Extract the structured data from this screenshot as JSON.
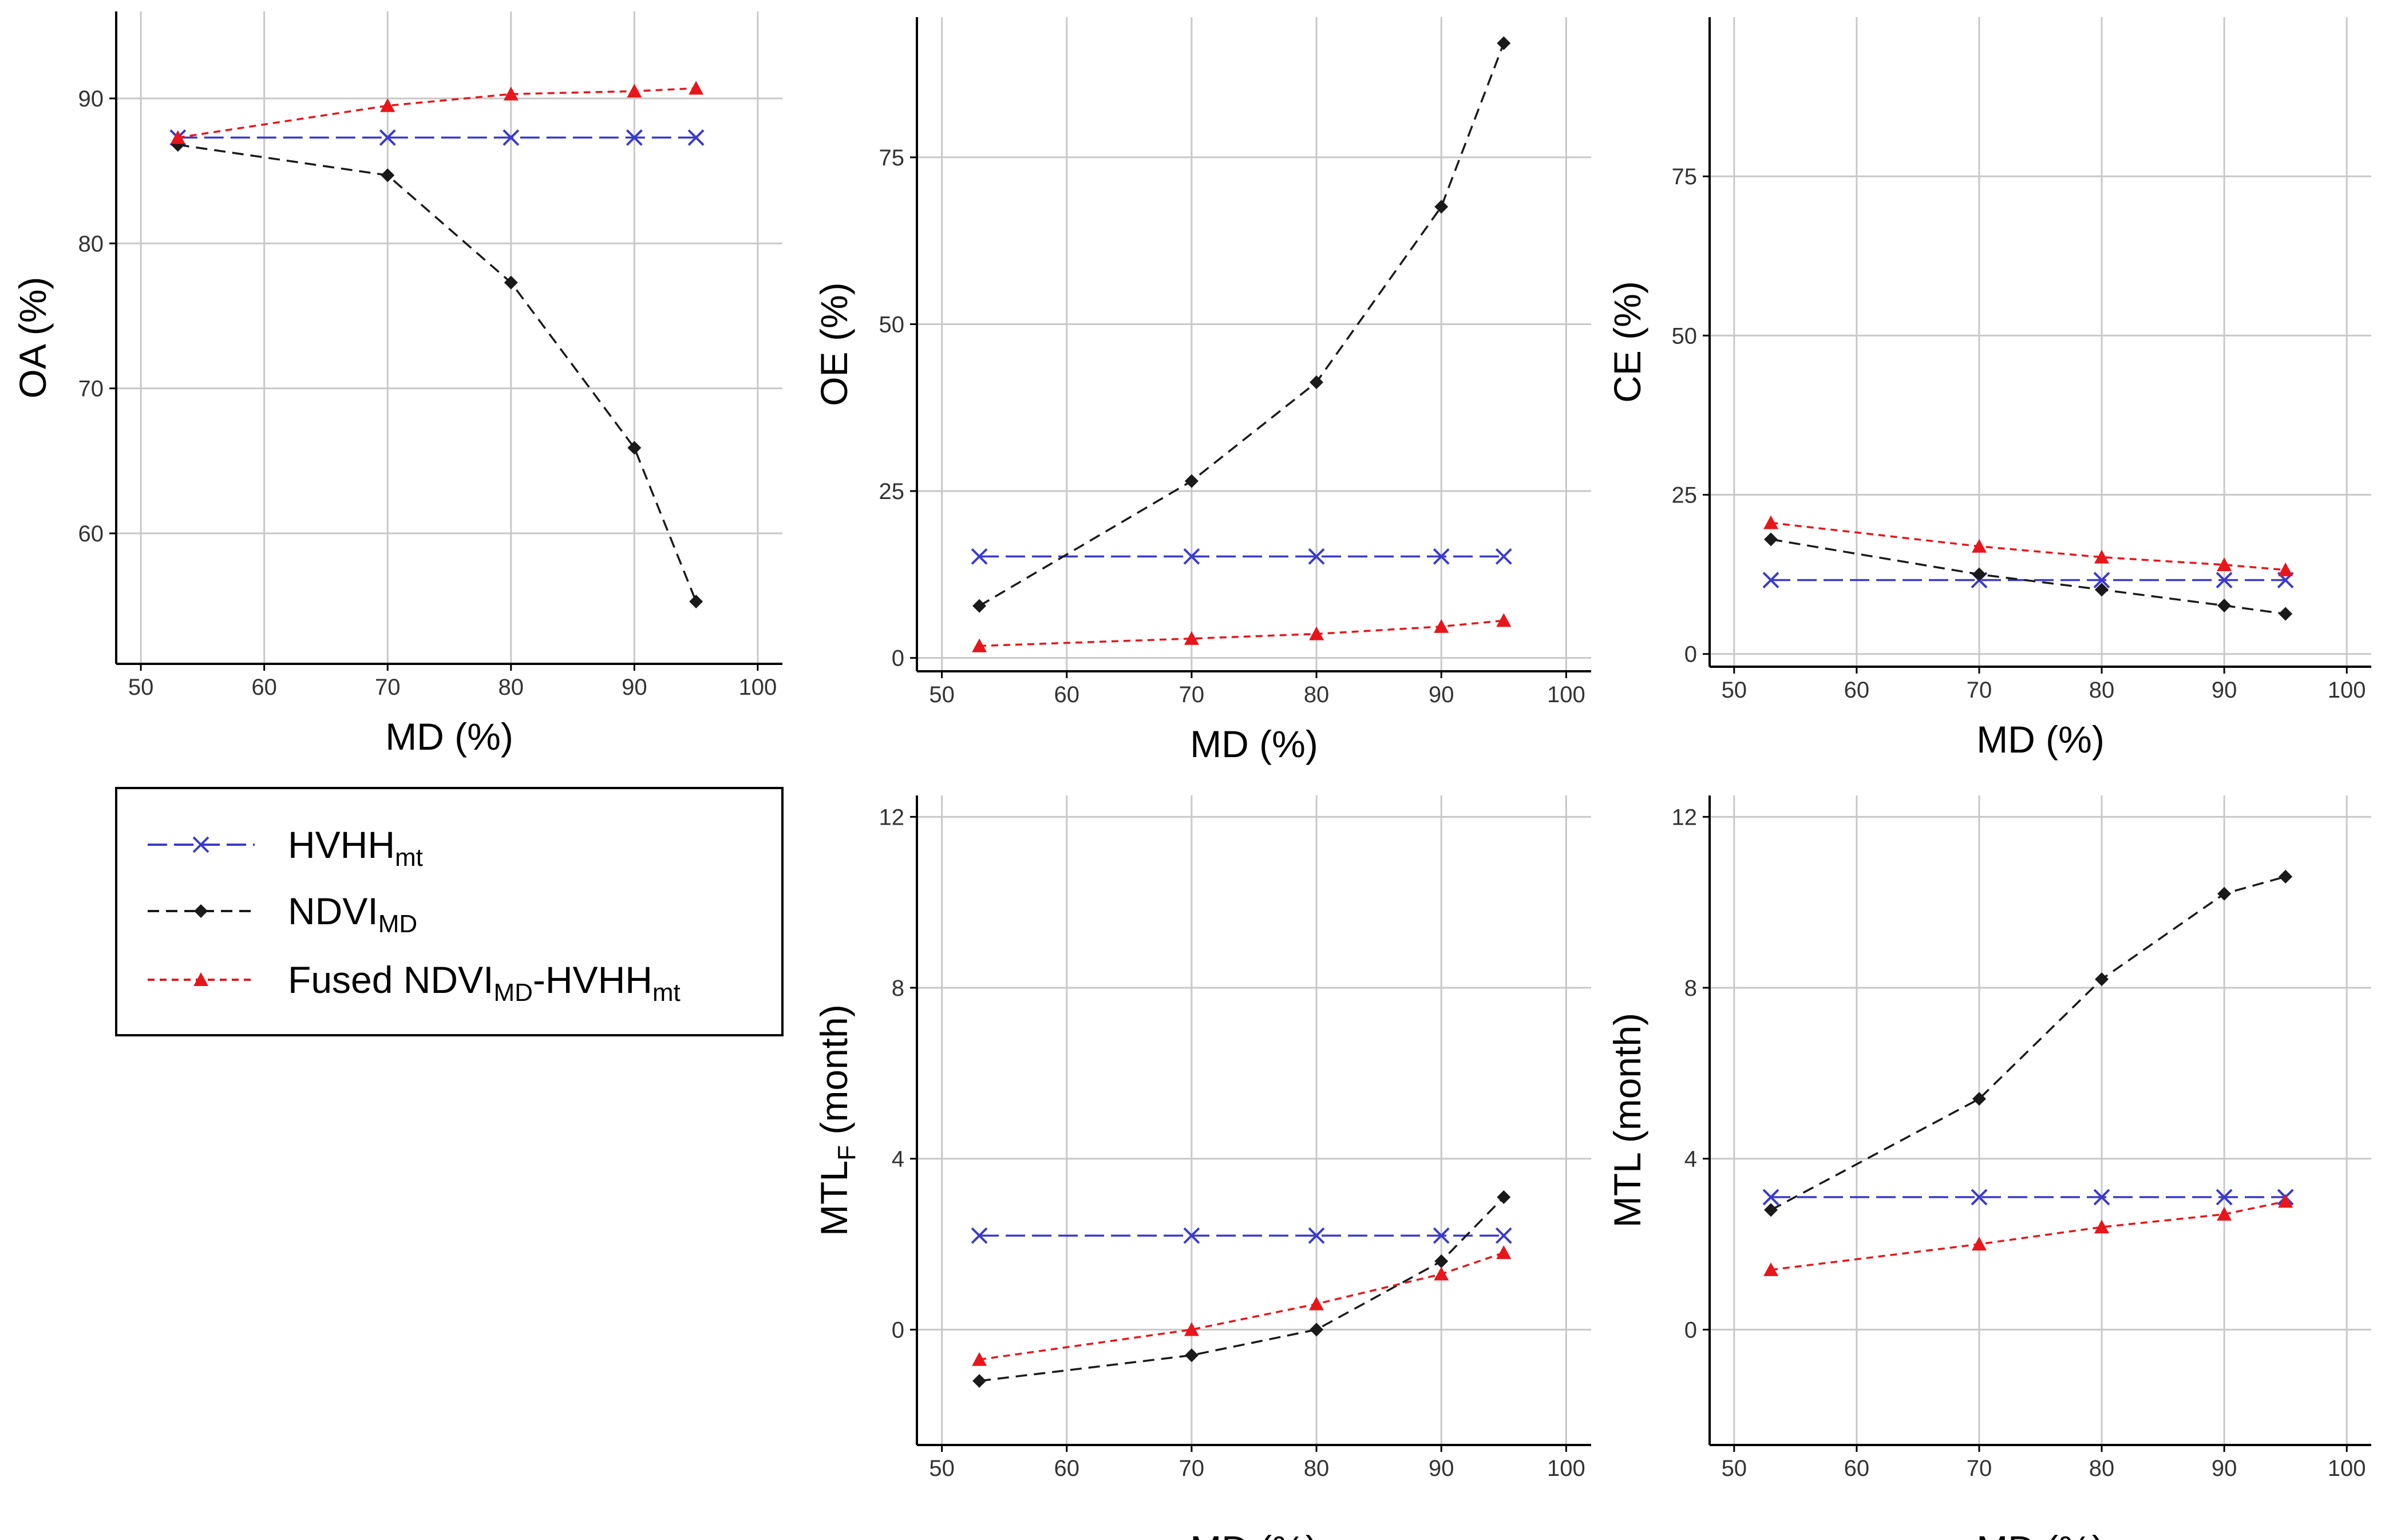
{
  "chart_data": [
    {
      "type": "line",
      "panel": "OA",
      "xlabel": "MD (%)",
      "ylabel": {
        "main": "OA (%)",
        "sub": ""
      },
      "xlim": [
        48,
        102
      ],
      "ylim": [
        51,
        96
      ],
      "xticks": [
        "50",
        "60",
        "70",
        "80",
        "90",
        "100"
      ],
      "yticks": [
        "60",
        "70",
        "80",
        "90"
      ],
      "x": [
        53,
        70,
        80,
        90,
        95
      ],
      "series": [
        {
          "name": "HVHHmt",
          "values": [
            87.3,
            87.3,
            87.3,
            87.3,
            87.3
          ]
        },
        {
          "name": "NDVIMD",
          "values": [
            86.8,
            84.7,
            77.3,
            65.9,
            55.3
          ]
        },
        {
          "name": "Fused NDVIMD-HVHHmt",
          "values": [
            87.3,
            89.5,
            90.3,
            90.5,
            90.7
          ]
        }
      ]
    },
    {
      "type": "line",
      "panel": "OE",
      "xlabel": "MD (%)",
      "ylabel": {
        "main": "OE (%)",
        "sub": ""
      },
      "xlim": [
        48,
        102
      ],
      "ylim": [
        -2,
        96
      ],
      "xticks": [
        "50",
        "60",
        "70",
        "80",
        "90",
        "100"
      ],
      "yticks": [
        "0",
        "25",
        "50",
        "75"
      ],
      "x": [
        53,
        70,
        80,
        90,
        95
      ],
      "series": [
        {
          "name": "HVHHmt",
          "values": [
            15.2,
            15.2,
            15.2,
            15.2,
            15.2
          ]
        },
        {
          "name": "NDVIMD",
          "values": [
            7.8,
            26.5,
            41.3,
            67.6,
            92.1
          ]
        },
        {
          "name": "Fused NDVIMD-HVHHmt",
          "values": [
            1.8,
            2.9,
            3.6,
            4.7,
            5.6
          ]
        }
      ]
    },
    {
      "type": "line",
      "panel": "CE",
      "xlabel": "MD (%)",
      "ylabel": {
        "main": "CE (%)",
        "sub": ""
      },
      "xlim": [
        48,
        102
      ],
      "ylim": [
        -2,
        100
      ],
      "xticks": [
        "50",
        "60",
        "70",
        "80",
        "90",
        "100"
      ],
      "yticks": [
        "0",
        "25",
        "50",
        "75"
      ],
      "x": [
        53,
        70,
        80,
        90,
        95
      ],
      "series": [
        {
          "name": "HVHHmt",
          "values": [
            11.6,
            11.6,
            11.6,
            11.6,
            11.6
          ]
        },
        {
          "name": "NDVIMD",
          "values": [
            18.0,
            12.5,
            10.1,
            7.6,
            6.3
          ]
        },
        {
          "name": "Fused NDVIMD-HVHHmt",
          "values": [
            20.6,
            16.9,
            15.2,
            14.0,
            13.2
          ]
        }
      ]
    },
    {
      "type": "line",
      "panel": "MTLF",
      "xlabel": "MD (%)",
      "ylabel": {
        "main": "MTL",
        "sub": "F",
        "unit": " (month)"
      },
      "xlim": [
        48,
        102
      ],
      "ylim": [
        -2.7,
        12.5
      ],
      "xticks": [
        "50",
        "60",
        "70",
        "80",
        "90",
        "100"
      ],
      "yticks": [
        "0",
        "4",
        "8",
        "12"
      ],
      "x": [
        53,
        70,
        80,
        90,
        95
      ],
      "series": [
        {
          "name": "HVHHmt",
          "values": [
            2.2,
            2.2,
            2.2,
            2.2,
            2.2
          ]
        },
        {
          "name": "NDVIMD",
          "values": [
            -1.2,
            -0.6,
            0.0,
            1.6,
            3.1
          ]
        },
        {
          "name": "Fused NDVIMD-HVHHmt",
          "values": [
            -0.7,
            0.0,
            0.6,
            1.3,
            1.8
          ]
        }
      ]
    },
    {
      "type": "line",
      "panel": "MTL",
      "xlabel": "MD (%)",
      "ylabel": {
        "main": "MTL (month)",
        "sub": ""
      },
      "xlim": [
        48,
        102
      ],
      "ylim": [
        -2.7,
        12.5
      ],
      "xticks": [
        "50",
        "60",
        "70",
        "80",
        "90",
        "100"
      ],
      "yticks": [
        "0",
        "4",
        "8",
        "12"
      ],
      "x": [
        53,
        70,
        80,
        90,
        95
      ],
      "series": [
        {
          "name": "HVHHmt",
          "values": [
            3.1,
            3.1,
            3.1,
            3.1,
            3.1
          ]
        },
        {
          "name": "NDVIMD",
          "values": [
            2.8,
            5.4,
            8.2,
            10.2,
            10.6
          ]
        },
        {
          "name": "Fused NDVIMD-HVHHmt",
          "values": [
            1.4,
            2.0,
            2.4,
            2.7,
            3.0
          ]
        }
      ]
    }
  ],
  "legend": {
    "items": [
      {
        "key": "hvhh",
        "main": "HVHH",
        "sub": "mt",
        "tail": "",
        "tail_sub": ""
      },
      {
        "key": "ndvi",
        "main": "NDVI",
        "sub": "MD",
        "tail": "",
        "tail_sub": ""
      },
      {
        "key": "fused",
        "main": "Fused NDVI",
        "sub": "MD",
        "tail": "-HVHH",
        "tail_sub": "mt"
      }
    ]
  },
  "colors": {
    "hvhh": "#3a3acc",
    "ndvi": "#1a1a1a",
    "fused": "#e8161b",
    "grid": "#c8c8c8",
    "axis": "#000000"
  }
}
